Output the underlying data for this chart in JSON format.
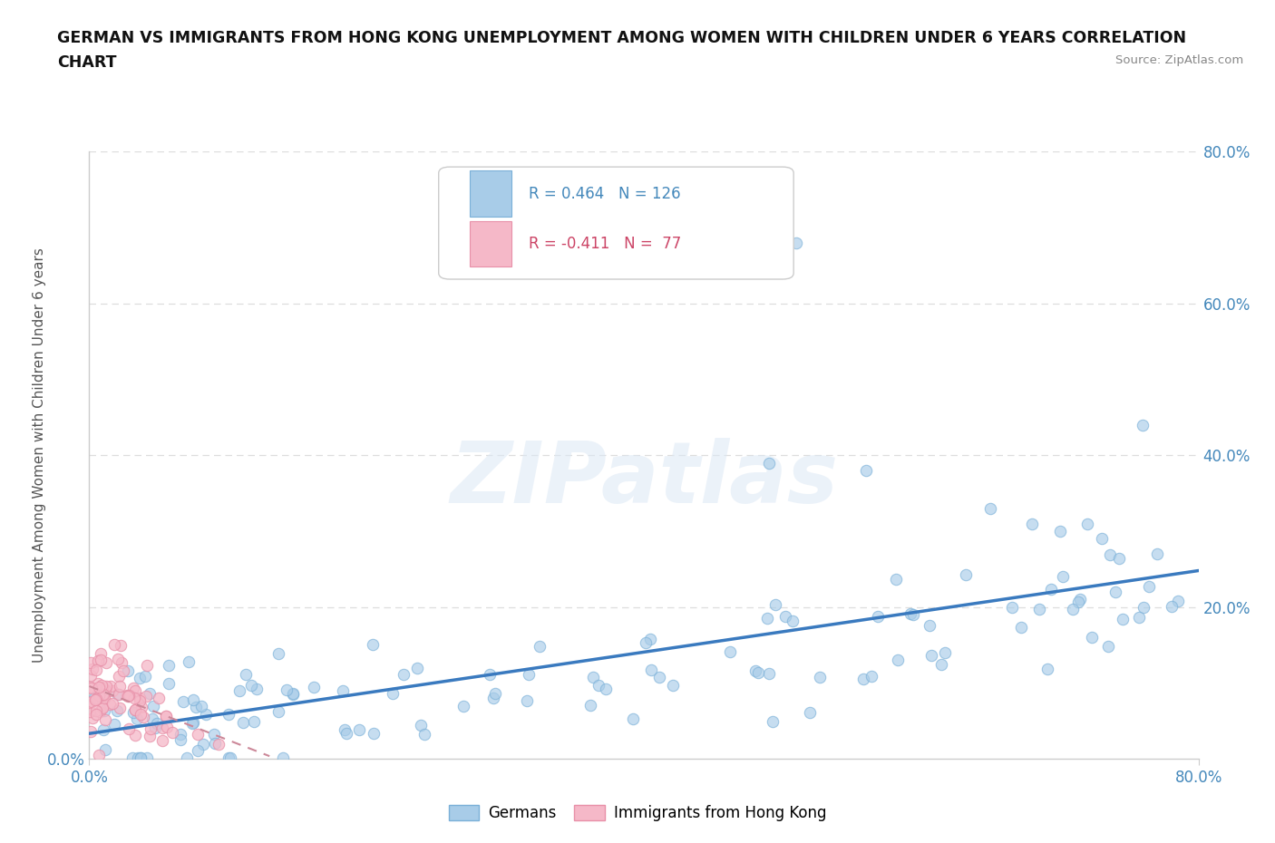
{
  "title_line1": "GERMAN VS IMMIGRANTS FROM HONG KONG UNEMPLOYMENT AMONG WOMEN WITH CHILDREN UNDER 6 YEARS CORRELATION",
  "title_line2": "CHART",
  "source": "Source: ZipAtlas.com",
  "ylabel": "Unemployment Among Women with Children Under 6 years",
  "xlim": [
    0.0,
    0.8
  ],
  "ylim": [
    0.0,
    0.8
  ],
  "ytick_values": [
    0.0,
    0.2,
    0.4,
    0.6,
    0.8
  ],
  "ytick_labels": [
    "0.0%",
    "20.0%",
    "40.0%",
    "60.0%",
    "80.0%"
  ],
  "xtick_values": [
    0.0,
    0.8
  ],
  "xtick_labels": [
    "0.0%",
    "80.0%"
  ],
  "watermark": "ZIPatlas",
  "legend_german_R": "0.464",
  "legend_german_N": "126",
  "legend_hk_R": "-0.411",
  "legend_hk_N": "77",
  "german_color": "#a8cce8",
  "german_edge_color": "#7ab0d8",
  "hk_color": "#f5b8c8",
  "hk_edge_color": "#e890a8",
  "line_german_color": "#3a7abf",
  "line_hk_color": "#cc8899",
  "background_color": "#ffffff",
  "grid_color": "#dddddd",
  "title_color": "#111111",
  "axis_label_color": "#555555",
  "tick_color": "#4488bb",
  "german_N": 126,
  "hk_N": 77,
  "german_R": 0.464,
  "hk_R": -0.411,
  "marker_size": 80,
  "legend_bottom_labels": [
    "Germans",
    "Immigrants from Hong Kong"
  ]
}
